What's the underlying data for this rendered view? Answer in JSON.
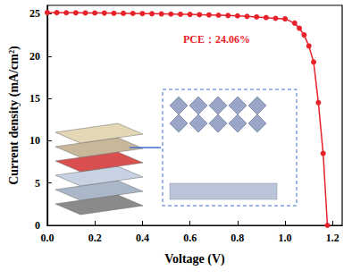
{
  "chart_data": {
    "type": "line",
    "x_label": "Voltage (V)",
    "y_label": "Current density (mA/cm²)",
    "annotation": "PCE：24.06%",
    "color": "#e8222b",
    "marker": "circle",
    "line_style": "solid",
    "grid": false,
    "x": [
      0,
      0.04,
      0.08,
      0.12,
      0.16,
      0.2,
      0.24,
      0.28,
      0.32,
      0.36,
      0.4,
      0.44,
      0.48,
      0.52,
      0.56,
      0.6,
      0.64,
      0.68,
      0.72,
      0.76,
      0.8,
      0.84,
      0.88,
      0.92,
      0.96,
      1.0,
      1.04,
      1.06,
      1.08,
      1.1,
      1.12,
      1.14,
      1.16,
      1.178
    ],
    "values": [
      25.15,
      25.14,
      25.13,
      25.12,
      25.11,
      25.1,
      25.09,
      25.07,
      25.06,
      25.05,
      25.03,
      25.01,
      24.99,
      24.97,
      24.95,
      24.93,
      24.9,
      24.87,
      24.84,
      24.8,
      24.76,
      24.7,
      24.63,
      24.55,
      24.47,
      24.4,
      23.9,
      23.3,
      22.5,
      21.2,
      19.3,
      14.5,
      8.5,
      0
    ],
    "xlim": [
      0,
      1.24
    ],
    "xticks": [
      {
        "value": 0,
        "label": "0.0"
      },
      0.2,
      0.4,
      0.6,
      0.8,
      {
        "value": 1,
        "label": "1.0"
      },
      1.2
    ],
    "ylim": [
      0,
      26
    ],
    "yticks": [
      0,
      5,
      10,
      15,
      20,
      25
    ]
  }
}
